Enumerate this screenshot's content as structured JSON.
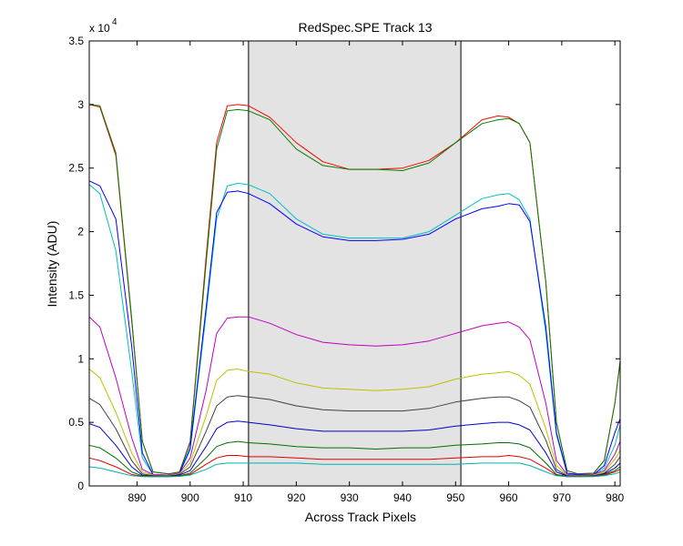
{
  "chart_data": {
    "type": "line",
    "title": "RedSpec.SPE   Track 13",
    "xlabel": "Across Track Pixels",
    "ylabel": "Intensity (ADU)",
    "y_exponent_label": "x 10",
    "y_exponent_power": "4",
    "xlim": [
      881,
      981
    ],
    "ylim": [
      0,
      35000
    ],
    "x_ticks": [
      890,
      900,
      910,
      920,
      930,
      940,
      950,
      960,
      970,
      980
    ],
    "x_tick_labels": [
      "890",
      "900",
      "910",
      "920",
      "930",
      "940",
      "950",
      "960",
      "970",
      "980"
    ],
    "y_ticks": [
      0,
      5000,
      10000,
      15000,
      20000,
      25000,
      30000,
      35000
    ],
    "y_tick_labels": [
      "0",
      "0.5",
      "1",
      "1.5",
      "2",
      "2.5",
      "3",
      "3.5"
    ],
    "shaded_region": {
      "x_start": 911,
      "x_end": 951,
      "fill": "#e3e3e3",
      "edge": "#000000"
    },
    "grid": false,
    "series": [
      {
        "color": "#ff0000",
        "x": [
          881,
          883,
          886,
          889,
          891,
          893,
          896,
          898,
          900,
          903,
          905,
          907,
          909,
          911,
          915,
          920,
          925,
          930,
          935,
          940,
          945,
          950,
          955,
          958,
          960,
          962,
          964,
          967,
          969,
          971,
          973,
          976,
          978,
          980,
          981
        ],
        "y": [
          30000,
          29800,
          26000,
          13000,
          3500,
          1100,
          950,
          1100,
          3500,
          18000,
          27000,
          29900,
          30000,
          29900,
          29000,
          27000,
          25500,
          24900,
          24900,
          25000,
          25600,
          27000,
          28800,
          29100,
          29000,
          28500,
          27000,
          16000,
          5000,
          1200,
          950,
          1000,
          2000,
          6500,
          9800
        ]
      },
      {
        "color": "#008000",
        "x": [
          881,
          883,
          886,
          889,
          891,
          893,
          896,
          898,
          900,
          903,
          905,
          907,
          909,
          911,
          915,
          920,
          925,
          930,
          935,
          940,
          945,
          950,
          955,
          958,
          960,
          962,
          964,
          967,
          969,
          971,
          973,
          976,
          978,
          980,
          981
        ],
        "y": [
          30000,
          29900,
          26200,
          13200,
          3500,
          1100,
          950,
          1100,
          3400,
          17500,
          26500,
          29500,
          29600,
          29500,
          28800,
          26500,
          25200,
          24900,
          24900,
          24800,
          25400,
          27000,
          28500,
          28800,
          28900,
          28500,
          27000,
          16000,
          5000,
          1200,
          950,
          1000,
          2000,
          6500,
          9800
        ]
      },
      {
        "color": "#00bfbf",
        "x": [
          881,
          883,
          886,
          889,
          891,
          893,
          896,
          898,
          900,
          903,
          905,
          907,
          909,
          911,
          915,
          920,
          925,
          930,
          935,
          940,
          945,
          950,
          955,
          958,
          960,
          962,
          964,
          967,
          969,
          971,
          973,
          976,
          978,
          980,
          981
        ],
        "y": [
          23700,
          23000,
          18500,
          9000,
          2200,
          900,
          800,
          1000,
          2800,
          13500,
          21000,
          23600,
          23800,
          23700,
          23000,
          21000,
          19800,
          19500,
          19500,
          19500,
          20000,
          21300,
          22600,
          22900,
          23000,
          22500,
          21000,
          12000,
          4000,
          1000,
          900,
          900,
          1400,
          3200,
          4800
        ]
      },
      {
        "color": "#0000ff",
        "x": [
          881,
          883,
          886,
          889,
          891,
          893,
          896,
          898,
          900,
          903,
          905,
          907,
          909,
          911,
          915,
          920,
          925,
          930,
          935,
          940,
          945,
          950,
          955,
          958,
          960,
          962,
          964,
          967,
          969,
          971,
          973,
          976,
          978,
          980,
          981
        ],
        "y": [
          24000,
          23600,
          21000,
          11000,
          2600,
          900,
          850,
          1000,
          3000,
          14000,
          21500,
          23100,
          23200,
          23000,
          22200,
          20600,
          19600,
          19300,
          19300,
          19400,
          19800,
          21000,
          21800,
          22000,
          22200,
          22100,
          20800,
          12500,
          4200,
          1000,
          900,
          900,
          1600,
          4200,
          5300
        ]
      },
      {
        "color": "#bf00bf",
        "x": [
          881,
          883,
          886,
          889,
          891,
          893,
          896,
          898,
          900,
          903,
          905,
          907,
          909,
          911,
          915,
          920,
          925,
          930,
          935,
          940,
          945,
          950,
          955,
          958,
          960,
          962,
          964,
          967,
          969,
          971,
          973,
          976,
          978,
          980,
          981
        ],
        "y": [
          13300,
          12500,
          8500,
          3800,
          1300,
          900,
          850,
          1000,
          2200,
          7500,
          12000,
          13200,
          13300,
          13300,
          12800,
          11900,
          11300,
          11100,
          11000,
          11100,
          11400,
          12000,
          12600,
          12800,
          12900,
          12500,
          11500,
          6500,
          2000,
          900,
          850,
          900,
          1200,
          2500,
          3500
        ]
      },
      {
        "color": "#bfbf00",
        "x": [
          881,
          883,
          886,
          889,
          891,
          893,
          896,
          898,
          900,
          903,
          905,
          907,
          909,
          911,
          915,
          920,
          925,
          930,
          935,
          940,
          945,
          950,
          955,
          958,
          960,
          962,
          964,
          967,
          969,
          971,
          973,
          976,
          978,
          980,
          981
        ],
        "y": [
          9200,
          8500,
          5800,
          2600,
          1100,
          850,
          800,
          950,
          1800,
          5500,
          8300,
          9100,
          9200,
          9000,
          8800,
          8100,
          7700,
          7600,
          7500,
          7600,
          7800,
          8400,
          8800,
          8900,
          9000,
          8700,
          8000,
          4500,
          1600,
          850,
          800,
          850,
          1100,
          2100,
          2800
        ]
      },
      {
        "color": "#404040",
        "x": [
          881,
          883,
          886,
          889,
          891,
          893,
          896,
          898,
          900,
          903,
          905,
          907,
          909,
          911,
          915,
          920,
          925,
          930,
          935,
          940,
          945,
          950,
          955,
          958,
          960,
          962,
          964,
          967,
          969,
          971,
          973,
          976,
          978,
          980,
          981
        ],
        "y": [
          6900,
          6400,
          4500,
          2000,
          950,
          800,
          780,
          900,
          1500,
          4300,
          6300,
          7000,
          7100,
          7000,
          6800,
          6300,
          6000,
          5900,
          5900,
          5900,
          6100,
          6600,
          6900,
          7000,
          7000,
          6700,
          6200,
          3600,
          1300,
          800,
          780,
          800,
          1000,
          1700,
          2300
        ]
      },
      {
        "color": "#0000cc",
        "x": [
          881,
          883,
          886,
          889,
          891,
          893,
          896,
          898,
          900,
          903,
          905,
          907,
          909,
          911,
          915,
          920,
          925,
          930,
          935,
          940,
          945,
          950,
          955,
          958,
          960,
          962,
          964,
          967,
          969,
          971,
          973,
          976,
          978,
          980,
          981
        ],
        "y": [
          4900,
          4600,
          3200,
          1500,
          850,
          780,
          760,
          850,
          1200,
          3100,
          4500,
          5000,
          5100,
          5000,
          4800,
          4500,
          4300,
          4300,
          4300,
          4300,
          4400,
          4700,
          4900,
          5000,
          5000,
          4800,
          4400,
          2600,
          1100,
          780,
          760,
          780,
          950,
          1400,
          1800
        ]
      },
      {
        "color": "#007000",
        "x": [
          881,
          883,
          886,
          889,
          891,
          893,
          896,
          898,
          900,
          903,
          905,
          907,
          909,
          911,
          915,
          920,
          925,
          930,
          935,
          940,
          945,
          950,
          955,
          958,
          960,
          962,
          964,
          967,
          969,
          971,
          973,
          976,
          978,
          980,
          981
        ],
        "y": [
          3200,
          3000,
          2200,
          1100,
          800,
          760,
          750,
          800,
          1000,
          2200,
          3100,
          3400,
          3500,
          3400,
          3300,
          3100,
          3000,
          3000,
          2900,
          3000,
          3000,
          3200,
          3300,
          3400,
          3400,
          3300,
          3000,
          1800,
          900,
          760,
          750,
          760,
          900,
          1200,
          1500
        ]
      },
      {
        "color": "#e00000",
        "x": [
          881,
          883,
          886,
          889,
          891,
          893,
          896,
          898,
          900,
          903,
          905,
          907,
          909,
          911,
          915,
          920,
          925,
          930,
          935,
          940,
          945,
          950,
          955,
          958,
          960,
          962,
          964,
          967,
          969,
          971,
          973,
          976,
          978,
          980,
          981
        ],
        "y": [
          2200,
          2000,
          1500,
          900,
          760,
          740,
          740,
          770,
          900,
          1700,
          2200,
          2400,
          2400,
          2300,
          2300,
          2200,
          2100,
          2100,
          2100,
          2100,
          2100,
          2200,
          2300,
          2300,
          2400,
          2300,
          2100,
          1400,
          850,
          740,
          740,
          750,
          850,
          1100,
          1300
        ]
      },
      {
        "color": "#00b0b0",
        "x": [
          881,
          883,
          886,
          889,
          891,
          893,
          896,
          898,
          900,
          903,
          905,
          907,
          909,
          911,
          915,
          920,
          925,
          930,
          935,
          940,
          945,
          950,
          955,
          958,
          960,
          962,
          964,
          967,
          969,
          971,
          973,
          976,
          978,
          980,
          981
        ],
        "y": [
          1500,
          1400,
          1100,
          800,
          730,
          720,
          720,
          750,
          850,
          1300,
          1700,
          1800,
          1800,
          1800,
          1800,
          1800,
          1700,
          1700,
          1700,
          1700,
          1700,
          1700,
          1800,
          1800,
          1800,
          1800,
          1600,
          1100,
          800,
          720,
          720,
          730,
          800,
          950,
          1100
        ]
      }
    ]
  }
}
